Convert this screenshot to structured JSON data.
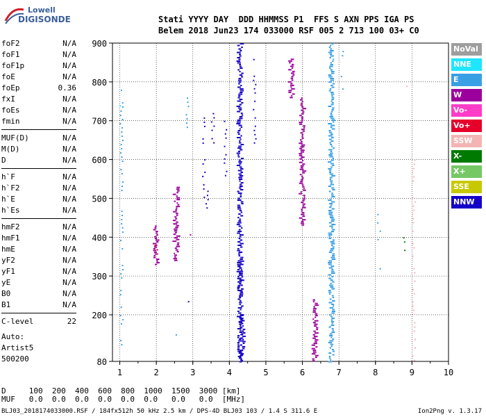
{
  "logo": {
    "line1": "Lowell",
    "line2": "DIGISONDE"
  },
  "header": {
    "line1": "Stati YYYY DAY  DDD HHMMSS P1  FFS S AXN PPS IGA PS",
    "line2": "Belem 2018 Jun23 174 033000 RSF 005 2 713 100 03+ C0"
  },
  "params": [
    {
      "k": "foF2",
      "v": "N/A"
    },
    {
      "k": "foF1",
      "v": "N/A"
    },
    {
      "k": "foF1p",
      "v": "N/A"
    },
    {
      "k": "foE",
      "v": "N/A"
    },
    {
      "k": "foEp",
      "v": "0.36"
    },
    {
      "k": "fxI",
      "v": "N/A"
    },
    {
      "k": "foEs",
      "v": "N/A"
    },
    {
      "k": "fmin",
      "v": "N/A"
    },
    {
      "k": "MUF(D)",
      "v": "N/A"
    },
    {
      "k": "M(D)",
      "v": "N/A"
    },
    {
      "k": "D",
      "v": "N/A"
    },
    {
      "k": "h`F",
      "v": "N/A"
    },
    {
      "k": "h`F2",
      "v": "N/A"
    },
    {
      "k": "h`E",
      "v": "N/A"
    },
    {
      "k": "h`Es",
      "v": "N/A"
    },
    {
      "k": "hmF2",
      "v": "N/A"
    },
    {
      "k": "hmF1",
      "v": "N/A"
    },
    {
      "k": "hmE",
      "v": "N/A"
    },
    {
      "k": "yF2",
      "v": "N/A"
    },
    {
      "k": "yF1",
      "v": "N/A"
    },
    {
      "k": "yE",
      "v": "N/A"
    },
    {
      "k": "B0",
      "v": "N/A"
    },
    {
      "k": "B1",
      "v": "N/A"
    },
    {
      "k": "C-level",
      "v": "22"
    }
  ],
  "auto": {
    "label": "Auto:",
    "artist": "Artist5",
    "code": "500200"
  },
  "legend": [
    {
      "name": "NoVal",
      "color": "#9e9e9e"
    },
    {
      "name": "NNE",
      "color": "#1ee6ff"
    },
    {
      "name": "E",
      "color": "#3aa0e6"
    },
    {
      "name": "W",
      "color": "#9c009c"
    },
    {
      "name": "Vo-",
      "color": "#ff3cc8"
    },
    {
      "name": "Vo+",
      "color": "#e6002a"
    },
    {
      "name": "SSW",
      "color": "#f4b4b4"
    },
    {
      "name": "X-",
      "color": "#007a00"
    },
    {
      "name": "X+",
      "color": "#76c864"
    },
    {
      "name": "SSE",
      "color": "#c8c800"
    },
    {
      "name": "NNW",
      "color": "#1400c8"
    }
  ],
  "dtable": {
    "line1": "D     100  200  400  600  800  1000  1500  3000 [km]",
    "line2": "MUF   0.0  0.0  0.0  0.0  0.0  0.0   0.0   0.0  [MHz]"
  },
  "footer": "BLJ03_2018174033000.RSF / 184fx512h 50 kHz 2.5 km / DPS-4D BLJ03 103 / 1.4 S 311.6 E",
  "version": "Ion2Png v. 1.3.17",
  "chart_data": {
    "type": "scatter",
    "xlim": [
      0.8,
      10
    ],
    "ylim": [
      80,
      900
    ],
    "x_ticks": [
      1,
      2,
      3,
      4,
      5,
      6,
      7,
      8,
      9,
      10
    ],
    "y_ticks": [
      80,
      200,
      300,
      400,
      500,
      600,
      700,
      800,
      900
    ],
    "grid": true,
    "clusters": [
      {
        "series": "NNW",
        "x": 4.3,
        "y1": 80,
        "y2": 900,
        "dense": true
      },
      {
        "series": "NNW",
        "x": 4.35,
        "y1": 80,
        "y2": 200,
        "dense": true
      },
      {
        "series": "NNW",
        "x": 4.3,
        "y1": 250,
        "y2": 340,
        "dense": true
      },
      {
        "series": "NNW",
        "x": 3.3,
        "y1": 500,
        "y2": 730,
        "dense": false
      },
      {
        "series": "NNW",
        "x": 3.4,
        "y1": 440,
        "y2": 520,
        "dense": false
      },
      {
        "series": "NNW",
        "x": 2.9,
        "y1": 230,
        "y2": 300,
        "dense": false
      },
      {
        "series": "NNW",
        "x": 4.7,
        "y1": 640,
        "y2": 870,
        "dense": false
      },
      {
        "series": "NNW",
        "x": 3.55,
        "y1": 620,
        "y2": 720,
        "dense": false
      },
      {
        "series": "NNW",
        "x": 3.9,
        "y1": 560,
        "y2": 700,
        "dense": false
      },
      {
        "series": "E",
        "x": 6.8,
        "y1": 80,
        "y2": 900,
        "dense": true
      },
      {
        "series": "E",
        "x": 2.55,
        "y1": 130,
        "y2": 150,
        "dense": false
      },
      {
        "series": "E",
        "x": 2.85,
        "y1": 680,
        "y2": 760,
        "dense": false
      },
      {
        "series": "E",
        "x": 7.1,
        "y1": 780,
        "y2": 880,
        "dense": false
      },
      {
        "series": "E",
        "x": 1.05,
        "y1": 120,
        "y2": 780,
        "dense": false
      },
      {
        "series": "E",
        "x": 8.1,
        "y1": 320,
        "y2": 460,
        "dense": false
      },
      {
        "series": "W",
        "x": 2.55,
        "y1": 340,
        "y2": 530,
        "dense": true
      },
      {
        "series": "W",
        "x": 2.0,
        "y1": 330,
        "y2": 430,
        "dense": true
      },
      {
        "series": "W",
        "x": 6.0,
        "y1": 430,
        "y2": 760,
        "dense": true
      },
      {
        "series": "W",
        "x": 5.7,
        "y1": 760,
        "y2": 860,
        "dense": true
      },
      {
        "series": "W",
        "x": 6.35,
        "y1": 80,
        "y2": 240,
        "dense": true
      },
      {
        "series": "W",
        "x": 2.95,
        "y1": 400,
        "y2": 440,
        "dense": false
      },
      {
        "series": "Vo+",
        "x": 2.0,
        "y1": 360,
        "y2": 380,
        "dense": false
      },
      {
        "series": "SSW",
        "x": 9.05,
        "y1": 80,
        "y2": 600,
        "dense": false
      },
      {
        "series": "SSW",
        "x": 8.85,
        "y1": 760,
        "y2": 790,
        "dense": false
      },
      {
        "series": "X-",
        "x": 8.8,
        "y1": 360,
        "y2": 400,
        "dense": false
      },
      {
        "series": "SSE",
        "x": 0.95,
        "y1": 510,
        "y2": 540,
        "dense": false
      },
      {
        "series": "NNE",
        "x": 1.0,
        "y1": 720,
        "y2": 740,
        "dense": false
      }
    ]
  }
}
